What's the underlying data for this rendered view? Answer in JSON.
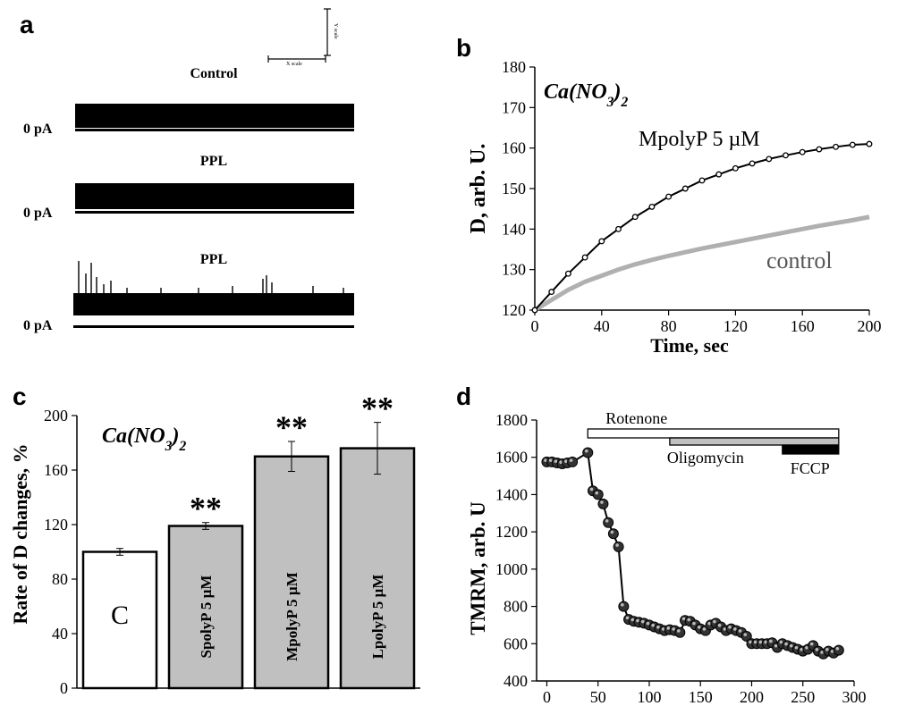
{
  "panel_a": {
    "letter": "a",
    "scale_bar": {
      "x_label": "X scale",
      "y_label": "Y scale"
    },
    "traces": [
      {
        "label": "Control",
        "zero_label": "0 pA"
      },
      {
        "label": "PPL",
        "zero_label": "0 pA"
      },
      {
        "label": "PPL",
        "zero_label": "0 pA"
      }
    ]
  },
  "panel_b": {
    "letter": "b"
  },
  "panel_c": {
    "letter": "c"
  },
  "panel_d": {
    "letter": "d"
  },
  "chart_data": [
    {
      "type": "line",
      "panel": "b",
      "title": "Ca(NO3)2",
      "xlabel": "Time, sec",
      "ylabel": "D, arb. U.",
      "xlim": [
        0,
        200
      ],
      "ylim": [
        120,
        180
      ],
      "xticks": [
        0,
        40,
        80,
        120,
        160,
        200
      ],
      "yticks": [
        120,
        130,
        140,
        150,
        160,
        170,
        180
      ],
      "series": [
        {
          "name": "MpolyP 5 µM",
          "color": "#000000",
          "x": [
            0,
            10,
            20,
            30,
            40,
            50,
            60,
            70,
            80,
            90,
            100,
            110,
            120,
            130,
            140,
            150,
            160,
            170,
            180,
            190,
            200
          ],
          "y": [
            120,
            124.5,
            129,
            133,
            137,
            140,
            143,
            145.5,
            148,
            150,
            152,
            153.5,
            155,
            156.2,
            157.3,
            158.2,
            159,
            159.7,
            160.3,
            160.8,
            161
          ]
        },
        {
          "name": "control",
          "color": "#b0b0b0",
          "x": [
            0,
            10,
            20,
            30,
            40,
            50,
            60,
            70,
            80,
            90,
            100,
            110,
            120,
            130,
            140,
            150,
            160,
            170,
            180,
            190,
            200
          ],
          "y": [
            120,
            122.5,
            125,
            127,
            128.5,
            130,
            131.3,
            132.4,
            133.4,
            134.3,
            135.2,
            136,
            136.8,
            137.6,
            138.4,
            139.2,
            140,
            140.8,
            141.5,
            142.2,
            143
          ]
        }
      ]
    },
    {
      "type": "bar",
      "panel": "c",
      "title": "Ca(NO3)2",
      "xlabel": "",
      "ylabel": "Rate of D changes, %",
      "ylim": [
        0,
        200
      ],
      "yticks": [
        0,
        40,
        80,
        120,
        160,
        200
      ],
      "categories": [
        "C",
        "SpolyP 5 µM",
        "MpolyP 5 µM",
        "LpolyP 5 µM"
      ],
      "values": [
        100,
        119,
        170,
        176
      ],
      "errors": [
        2.5,
        2.5,
        11,
        19
      ],
      "significance": [
        "",
        "**",
        "**",
        "**"
      ],
      "colors": [
        "#ffffff",
        "#c0c0c0",
        "#c0c0c0",
        "#c0c0c0"
      ]
    },
    {
      "type": "line",
      "panel": "d",
      "xlabel": "Time, sec",
      "ylabel": "TMRM, arb. U",
      "xlim": [
        -10,
        300
      ],
      "ylim": [
        400,
        1800
      ],
      "xticks": [
        0,
        50,
        100,
        150,
        200,
        250,
        300
      ],
      "yticks": [
        400,
        600,
        800,
        1000,
        1200,
        1400,
        1600,
        1800
      ],
      "treatments": [
        {
          "name": "Rotenone",
          "start": 40,
          "end": 285,
          "fill": "#ffffff"
        },
        {
          "name": "Oligomycin",
          "start": 120,
          "end": 285,
          "fill": "#c0c0c0"
        },
        {
          "name": "FCCP",
          "start": 230,
          "end": 285,
          "fill": "#000000"
        }
      ],
      "series": [
        {
          "name": "",
          "color": "#000000",
          "x": [
            0,
            5,
            10,
            15,
            20,
            25,
            40,
            45,
            50,
            55,
            60,
            65,
            70,
            75,
            80,
            85,
            90,
            95,
            100,
            105,
            110,
            115,
            120,
            125,
            130,
            135,
            140,
            145,
            150,
            155,
            160,
            165,
            170,
            175,
            180,
            185,
            190,
            195,
            200,
            205,
            210,
            215,
            220,
            225,
            230,
            235,
            240,
            245,
            250,
            255,
            260,
            265,
            270,
            275,
            280,
            285
          ],
          "y": [
            1575,
            1575,
            1570,
            1565,
            1570,
            1575,
            1625,
            1420,
            1400,
            1350,
            1250,
            1190,
            1120,
            800,
            730,
            720,
            715,
            710,
            700,
            690,
            680,
            670,
            675,
            670,
            660,
            725,
            720,
            700,
            680,
            670,
            700,
            710,
            690,
            670,
            680,
            670,
            660,
            640,
            600,
            600,
            600,
            600,
            605,
            580,
            600,
            590,
            580,
            570,
            560,
            570,
            590,
            560,
            545,
            560,
            550,
            565
          ]
        }
      ]
    }
  ]
}
